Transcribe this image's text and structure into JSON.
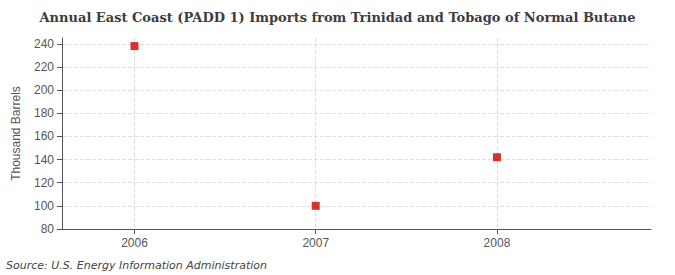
{
  "chart_data": {
    "type": "scatter",
    "title": "Annual East Coast (PADD 1) Imports from Trinidad and Tobago of Normal Butane",
    "ylabel": "Thousand Barrels",
    "source": "Source: U.S. Energy Information Administration",
    "x": [
      2006,
      2007,
      2008
    ],
    "values": [
      238,
      100,
      142
    ],
    "color": "#cc0000",
    "marker": "square",
    "xlim": [
      2005.6,
      2008.85
    ],
    "xticks": [
      2006,
      2007,
      2008
    ],
    "ylim": [
      80,
      245
    ],
    "yticks": [
      80,
      100,
      120,
      140,
      160,
      180,
      200,
      220,
      240
    ],
    "grid": true
  }
}
